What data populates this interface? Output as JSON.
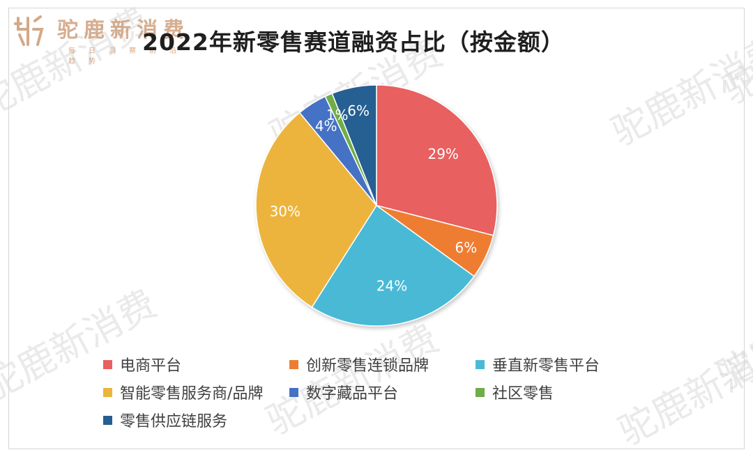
{
  "brand": {
    "name": "驼鹿新消费",
    "tagline": "每日洞察前沿趋势"
  },
  "watermark": "驼鹿新消费",
  "chart_data": {
    "type": "pie",
    "title": "2022年新零售赛道融资占比（按金额）",
    "categories": [
      "电商平台",
      "创新零售连锁品牌",
      "垂直新零售平台",
      "智能零售服务商/品牌",
      "数字藏品平台",
      "社区零售",
      "零售供应链服务"
    ],
    "values": [
      29,
      6,
      24,
      30,
      4,
      1,
      6
    ],
    "labels": [
      "29%",
      "6%",
      "24%",
      "30%",
      "4%",
      "1%",
      "6%"
    ],
    "colors": [
      "#e8605f",
      "#ee7d31",
      "#4ab9d6",
      "#ecb43c",
      "#4472c4",
      "#70ad47",
      "#255e91"
    ],
    "legend_position": "bottom",
    "start_angle_deg": 0,
    "direction": "clockwise"
  }
}
